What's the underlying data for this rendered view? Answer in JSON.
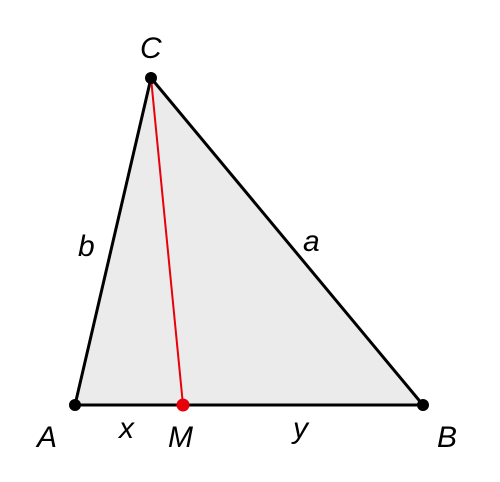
{
  "points": {
    "A": {
      "label": "A"
    },
    "B": {
      "label": "B"
    },
    "C": {
      "label": "C"
    },
    "M": {
      "label": "M"
    }
  },
  "sides": {
    "a": "a",
    "b": "b",
    "x": "x",
    "y": "y"
  },
  "colors": {
    "fill": "#ebebeb",
    "edge": "#000000",
    "cevian": "#e8000b",
    "point": "#000000",
    "special_point": "#e8000b"
  }
}
